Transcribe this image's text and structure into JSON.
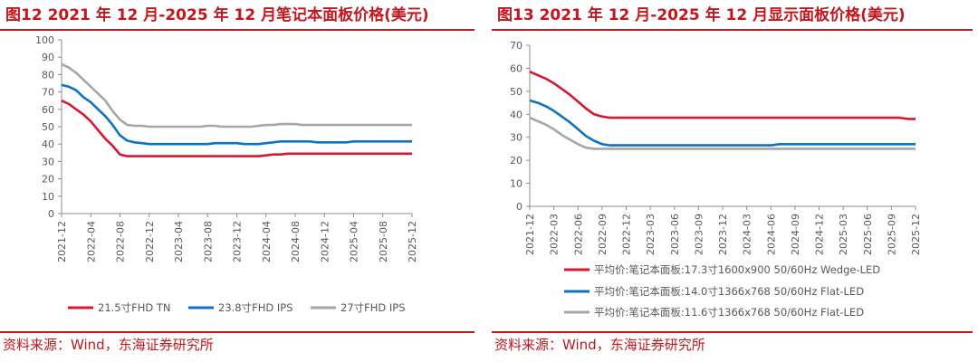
{
  "figures": [
    {
      "title": "图12  2021 年 12 月-2025 年 12 月笔记本面板价格(美元)",
      "source": "资料来源：Wind，东海证券研究所"
    },
    {
      "title": "图13  2021 年 12 月-2025 年 12 月显示面板价格(美元)",
      "source": "资料来源：Wind，东海证券研究所"
    }
  ],
  "colors": {
    "accent": "#c4161c",
    "red": "#d7172f",
    "blue": "#0f72bf",
    "gray": "#a6a6a6",
    "axis": "#8c8c8c",
    "text": "#595959"
  },
  "chart_data": [
    {
      "type": "line",
      "title": "2021 年 12 月-2025 年 12 月笔记本面板价格(美元)",
      "xlabel": "",
      "ylabel": "",
      "ylim": [
        0,
        100
      ],
      "yticks": [
        0,
        10,
        20,
        30,
        40,
        50,
        60,
        70,
        80,
        90,
        100
      ],
      "x": [
        "2021-12",
        "2022-01",
        "2022-02",
        "2022-03",
        "2022-04",
        "2022-05",
        "2022-06",
        "2022-07",
        "2022-08",
        "2022-09",
        "2022-10",
        "2022-11",
        "2022-12",
        "2023-01",
        "2023-02",
        "2023-03",
        "2023-04",
        "2023-05",
        "2023-06",
        "2023-07",
        "2023-08",
        "2023-09",
        "2023-10",
        "2023-11",
        "2023-12",
        "2024-01",
        "2024-02",
        "2024-03",
        "2024-04",
        "2024-05",
        "2024-06",
        "2024-07",
        "2024-08",
        "2024-09",
        "2024-10",
        "2024-11",
        "2024-12",
        "2025-01",
        "2025-02",
        "2025-03",
        "2025-04",
        "2025-05",
        "2025-06",
        "2025-07",
        "2025-08",
        "2025-09",
        "2025-10",
        "2025-11",
        "2025-12"
      ],
      "xtick_labels": [
        "2021-12",
        "2022-04",
        "2022-08",
        "2022-12",
        "2023-04",
        "2023-08",
        "2023-12",
        "2024-04",
        "2024-08",
        "2024-12",
        "2025-04",
        "2025-08",
        "2025-12"
      ],
      "legend_position": "bottom",
      "series": [
        {
          "name": "21.5寸FHD TN",
          "color": "#d7172f",
          "values": [
            65,
            63,
            60,
            57,
            53,
            48,
            43,
            39,
            34,
            33,
            33,
            33,
            33,
            33,
            33,
            33,
            33,
            33,
            33,
            33,
            33,
            33,
            33,
            33,
            33,
            33,
            33,
            33,
            33.5,
            34,
            34,
            34.5,
            34.5,
            34.5,
            34.5,
            34.5,
            34.5,
            34.5,
            34.5,
            34.5,
            34.5,
            34.5,
            34.5,
            34.5,
            34.5,
            34.5,
            34.5,
            34.5,
            34.5
          ]
        },
        {
          "name": "23.8寸FHD IPS",
          "color": "#0f72bf",
          "values": [
            74,
            73,
            71,
            67,
            64,
            60,
            56,
            51,
            45,
            42,
            41,
            40.5,
            40,
            40,
            40,
            40,
            40,
            40,
            40,
            40,
            40,
            40.5,
            40.5,
            40.5,
            40.5,
            40,
            40,
            40,
            40.5,
            41,
            41.5,
            41.5,
            41.5,
            41.5,
            41.5,
            41,
            41,
            41,
            41,
            41,
            41.5,
            41.5,
            41.5,
            41.5,
            41.5,
            41.5,
            41.5,
            41.5,
            41.5
          ]
        },
        {
          "name": "27寸FHD IPS",
          "color": "#a6a6a6",
          "values": [
            86,
            84,
            81,
            77,
            73,
            69,
            65,
            59,
            54,
            51,
            50.5,
            50.5,
            50,
            50,
            50,
            50,
            50,
            50,
            50,
            50,
            50.5,
            50.5,
            50,
            50,
            50,
            50,
            50,
            50.5,
            51,
            51,
            51.5,
            51.5,
            51.5,
            51,
            51,
            51,
            51,
            51,
            51,
            51,
            51,
            51,
            51,
            51,
            51,
            51,
            51,
            51,
            51
          ]
        }
      ]
    },
    {
      "type": "line",
      "title": "2021 年 12 月-2025 年 12 月显示面板价格(美元)",
      "xlabel": "",
      "ylabel": "",
      "ylim": [
        0,
        70
      ],
      "yticks": [
        0,
        10,
        20,
        30,
        40,
        50,
        60,
        70
      ],
      "x": [
        "2021-12",
        "2022-01",
        "2022-02",
        "2022-03",
        "2022-04",
        "2022-05",
        "2022-06",
        "2022-07",
        "2022-08",
        "2022-09",
        "2022-10",
        "2022-11",
        "2022-12",
        "2023-01",
        "2023-02",
        "2023-03",
        "2023-04",
        "2023-05",
        "2023-06",
        "2023-07",
        "2023-08",
        "2023-09",
        "2023-10",
        "2023-11",
        "2023-12",
        "2024-01",
        "2024-02",
        "2024-03",
        "2024-04",
        "2024-05",
        "2024-06",
        "2024-07",
        "2024-08",
        "2024-09",
        "2024-10",
        "2024-11",
        "2024-12",
        "2025-01",
        "2025-02",
        "2025-03",
        "2025-04",
        "2025-05",
        "2025-06",
        "2025-07",
        "2025-08",
        "2025-09",
        "2025-10",
        "2025-11",
        "2025-12"
      ],
      "xtick_labels": [
        "2021-12",
        "2022-03",
        "2022-06",
        "2022-09",
        "2022-12",
        "2023-03",
        "2023-06",
        "2023-09",
        "2023-12",
        "2024-03",
        "2024-06",
        "2024-09",
        "2024-12",
        "2025-03",
        "2025-06",
        "2025-09",
        "2025-12"
      ],
      "legend_position": "bottom",
      "series": [
        {
          "name": "平均价:笔记本面板:17.3寸1600x900 50/60Hz Wedge-LED",
          "color": "#d7172f",
          "values": [
            58.5,
            57,
            55.5,
            53.5,
            51,
            48.5,
            45.5,
            42.5,
            40,
            39,
            38.5,
            38.5,
            38.5,
            38.5,
            38.5,
            38.5,
            38.5,
            38.5,
            38.5,
            38.5,
            38.5,
            38.5,
            38.5,
            38.5,
            38.5,
            38.5,
            38.5,
            38.5,
            38.5,
            38.5,
            38.5,
            38.5,
            38.5,
            38.5,
            38.5,
            38.5,
            38.5,
            38.5,
            38.5,
            38.5,
            38.5,
            38.5,
            38.5,
            38.5,
            38.5,
            38.5,
            38.5,
            38,
            38
          ]
        },
        {
          "name": "平均价:笔记本面板:14.0寸1366x768 50/60Hz Flat-LED",
          "color": "#0f72bf",
          "values": [
            46,
            45,
            43.5,
            41.5,
            39,
            36.5,
            33.5,
            30.5,
            28.5,
            27,
            26.5,
            26.5,
            26.5,
            26.5,
            26.5,
            26.5,
            26.5,
            26.5,
            26.5,
            26.5,
            26.5,
            26.5,
            26.5,
            26.5,
            26.5,
            26.5,
            26.5,
            26.5,
            26.5,
            26.5,
            26.5,
            27,
            27,
            27,
            27,
            27,
            27,
            27,
            27,
            27,
            27,
            27,
            27,
            27,
            27,
            27,
            27,
            27,
            27
          ]
        },
        {
          "name": "平均价:笔记本面板:11.6寸1366x768 50/60Hz Flat-LED",
          "color": "#a6a6a6",
          "values": [
            38.5,
            37,
            35.5,
            33.5,
            31,
            29,
            27,
            25.5,
            25,
            25,
            25,
            25,
            25,
            25,
            25,
            25,
            25,
            25,
            25,
            25,
            25,
            25,
            25,
            25,
            25,
            25,
            25,
            25,
            25,
            25,
            25,
            25,
            25,
            25,
            25,
            25,
            25,
            25,
            25,
            25,
            25,
            25,
            25,
            25,
            25,
            25,
            25,
            25,
            25
          ]
        }
      ]
    }
  ]
}
